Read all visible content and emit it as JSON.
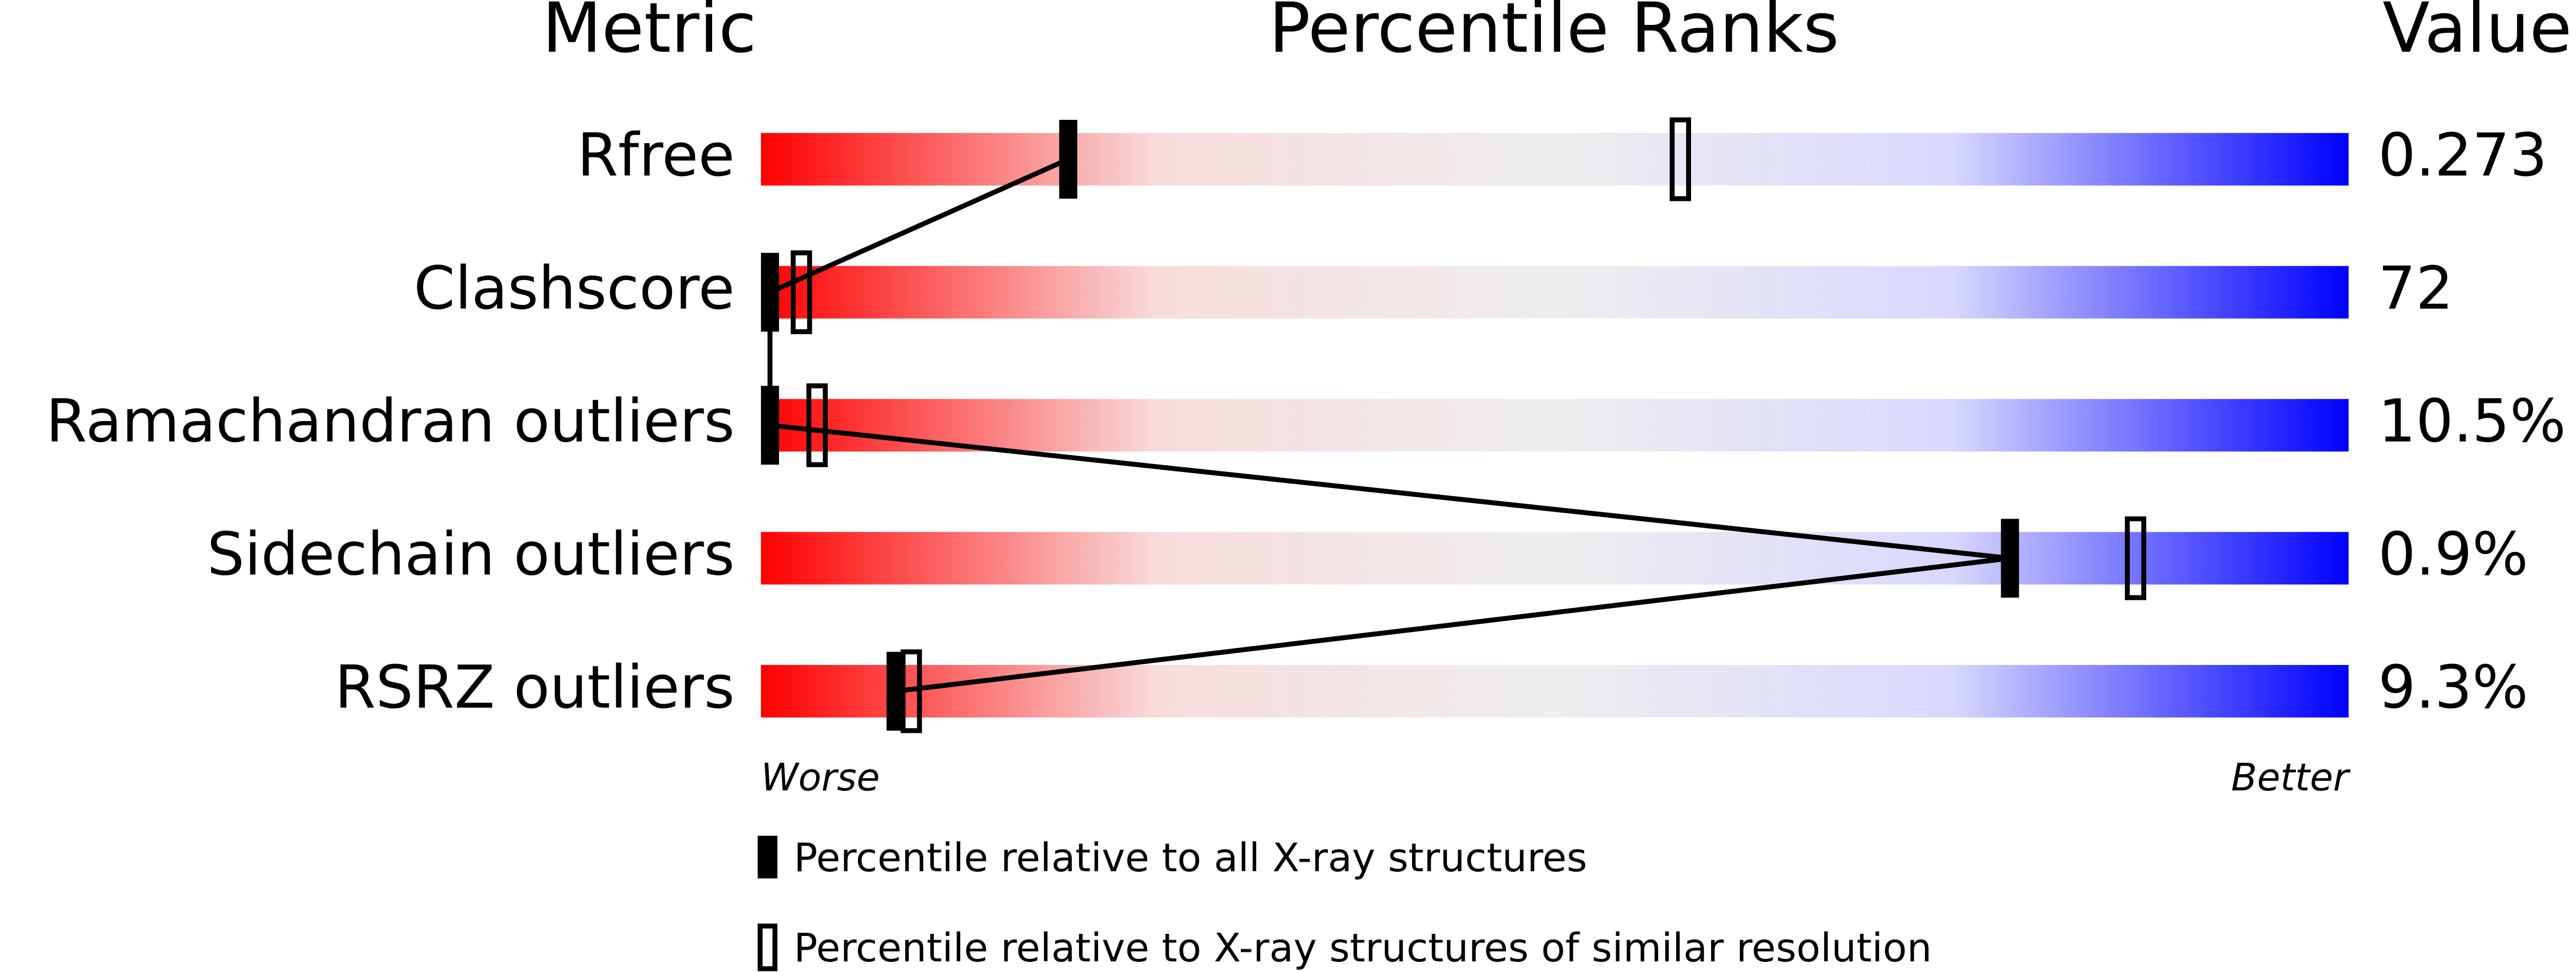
{
  "chart_data": {
    "type": "percentile",
    "title": "Percentile Ranks",
    "metric_header": "Metric",
    "value_header": "Value",
    "categories": [
      "Rfree",
      "Clashscore",
      "Ramachandran outliers",
      "Sidechain outliers",
      "RSRZ outliers"
    ],
    "metric_values": [
      "0.273",
      "72",
      "10.5%",
      "0.9%",
      "9.3%"
    ],
    "xlim": [
      0,
      100
    ],
    "low_label": "Worse",
    "high_label": "Better",
    "colors": [
      "#ff0000",
      "#f8dcdc",
      "#eeeeee",
      "#d8d8ff",
      "#0000ff"
    ],
    "series": [
      {
        "name": "Percentile relative to all X-ray structures",
        "style": "filled",
        "color": "#000000",
        "values": [
          19,
          0,
          0,
          79,
          8
        ]
      },
      {
        "name": "Percentile relative to X-ray structures of similar resolution",
        "style": "open",
        "color": "#000000",
        "values": [
          58,
          2,
          3,
          87,
          9
        ]
      }
    ]
  }
}
